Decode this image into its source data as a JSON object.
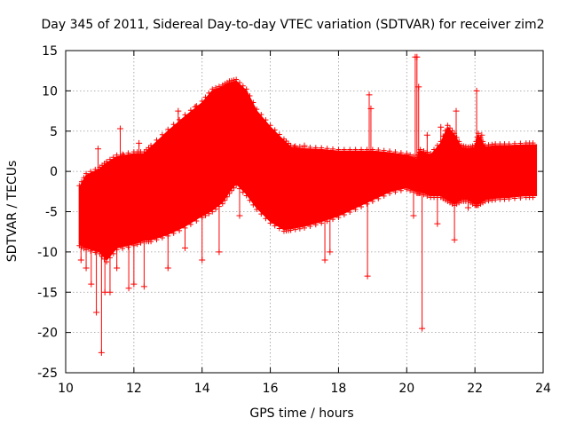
{
  "chart_data": {
    "type": "scatter",
    "title": "Day 345 of 2011, Sidereal Day-to-day VTEC variation (SDTVAR) for receiver zim2",
    "xlabel": "GPS time / hours",
    "ylabel": "SDTVAR / TECUs",
    "xlim": [
      10,
      24
    ],
    "ylim": [
      -25,
      15
    ],
    "xticks": [
      10,
      12,
      14,
      16,
      18,
      20,
      22,
      24
    ],
    "yticks": [
      15,
      10,
      5,
      0,
      -5,
      -10,
      -15,
      -20,
      -25
    ],
    "grid": true,
    "marker": "+",
    "color": "#ff0000",
    "envelope": {
      "x": [
        10.4,
        10.6,
        11.0,
        11.2,
        11.5,
        12.0,
        12.3,
        12.5,
        13.0,
        13.5,
        14.0,
        14.3,
        14.6,
        14.8,
        15.0,
        15.3,
        15.6,
        16.0,
        16.4,
        16.6,
        17.0,
        17.5,
        18.0,
        18.5,
        19.0,
        19.5,
        20.0,
        20.3,
        20.4,
        20.7,
        21.0,
        21.2,
        21.4,
        21.6,
        21.8,
        22.0,
        22.1,
        22.3,
        22.6,
        23.0,
        23.5,
        23.8
      ],
      "upper": [
        -2.0,
        -0.5,
        0.3,
        1.0,
        1.8,
        2.2,
        2.2,
        3.0,
        5.0,
        6.8,
        8.5,
        10.0,
        10.5,
        11.0,
        11.2,
        10.0,
        7.5,
        5.5,
        3.8,
        3.0,
        2.8,
        2.7,
        2.5,
        2.5,
        2.5,
        2.3,
        2.0,
        1.5,
        2.5,
        2.0,
        3.5,
        5.5,
        4.5,
        3.0,
        2.8,
        3.0,
        4.5,
        3.0,
        3.2,
        3.2,
        3.3,
        3.3
      ],
      "lower": [
        -9.0,
        -9.5,
        -10.0,
        -11.0,
        -9.5,
        -9.0,
        -8.5,
        -8.5,
        -7.8,
        -6.8,
        -5.5,
        -4.8,
        -3.8,
        -2.5,
        -1.5,
        -2.8,
        -4.5,
        -6.2,
        -7.2,
        -7.1,
        -6.8,
        -6.2,
        -5.5,
        -4.5,
        -3.5,
        -2.5,
        -2.0,
        -2.5,
        -2.5,
        -3.0,
        -3.0,
        -3.5,
        -4.0,
        -3.5,
        -3.5,
        -4.0,
        -4.0,
        -3.5,
        -3.3,
        -3.2,
        -3.0,
        -3.0
      ]
    },
    "outliers": {
      "x": [
        10.45,
        10.6,
        10.75,
        10.9,
        10.95,
        11.05,
        11.15,
        11.3,
        11.5,
        11.6,
        11.7,
        11.85,
        12.0,
        12.15,
        12.3,
        12.4,
        13.0,
        13.3,
        13.5,
        13.8,
        14.0,
        14.2,
        14.5,
        14.9,
        15.1,
        16.7,
        17.0,
        17.6,
        17.75,
        18.9,
        18.95,
        18.85,
        20.2,
        20.25,
        20.3,
        20.35,
        20.45,
        20.6,
        20.9,
        21.0,
        21.4,
        21.45,
        21.8,
        22.05,
        22.2
      ],
      "y": [
        -11.0,
        -12.0,
        -14.0,
        -17.5,
        2.8,
        -22.5,
        -15.0,
        -15.0,
        -12.0,
        5.3,
        2.0,
        -14.5,
        -14.0,
        3.5,
        -14.3,
        2.0,
        -12.0,
        7.5,
        -9.5,
        8.0,
        -11.0,
        5.0,
        -10.0,
        8.0,
        -5.5,
        3.0,
        3.2,
        -11.0,
        -10.0,
        9.5,
        7.8,
        -13.0,
        -5.5,
        14.2,
        14.2,
        10.5,
        -19.5,
        4.5,
        -6.5,
        5.5,
        -8.5,
        7.5,
        -4.5,
        10.0,
        4.5
      ]
    }
  }
}
